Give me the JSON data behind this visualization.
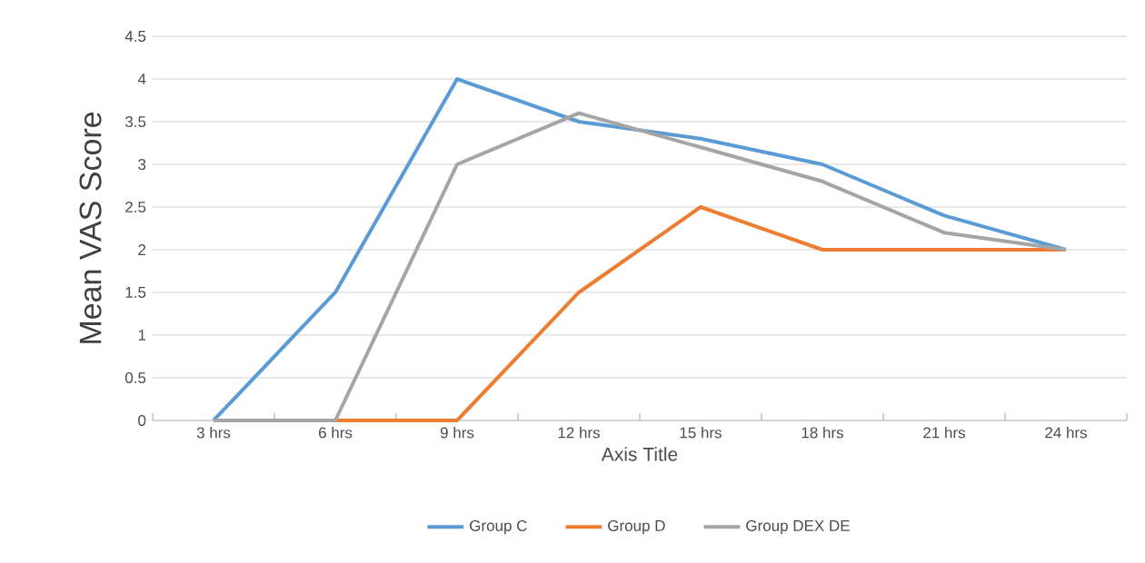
{
  "chart_data": {
    "type": "line",
    "xlabel": "Axis Title",
    "ylabel": "Mean VAS Score",
    "categories": [
      "3 hrs",
      "6 hrs",
      "9 hrs",
      "12 hrs",
      "15 hrs",
      "18 hrs",
      "21 hrs",
      "24 hrs"
    ],
    "series": [
      {
        "name": "Group C",
        "color": "#5b9bd5",
        "values": [
          0,
          1.5,
          4,
          3.5,
          3.3,
          3,
          2.4,
          2
        ]
      },
      {
        "name": "Group D",
        "color": "#ed7d31",
        "values": [
          0,
          0,
          0,
          1.5,
          2.5,
          2,
          2,
          2
        ]
      },
      {
        "name": "Group DEX DE",
        "color": "#a5a5a5",
        "values": [
          0,
          0,
          3,
          3.6,
          3.2,
          2.8,
          2.2,
          2
        ]
      }
    ],
    "ylim": [
      0,
      4.5
    ],
    "yticks": [
      0,
      0.5,
      1,
      1.5,
      2,
      2.5,
      3,
      3.5,
      4,
      4.5
    ],
    "grid": "y",
    "legend": "bottom",
    "marker": "none",
    "line_style": "solid"
  }
}
